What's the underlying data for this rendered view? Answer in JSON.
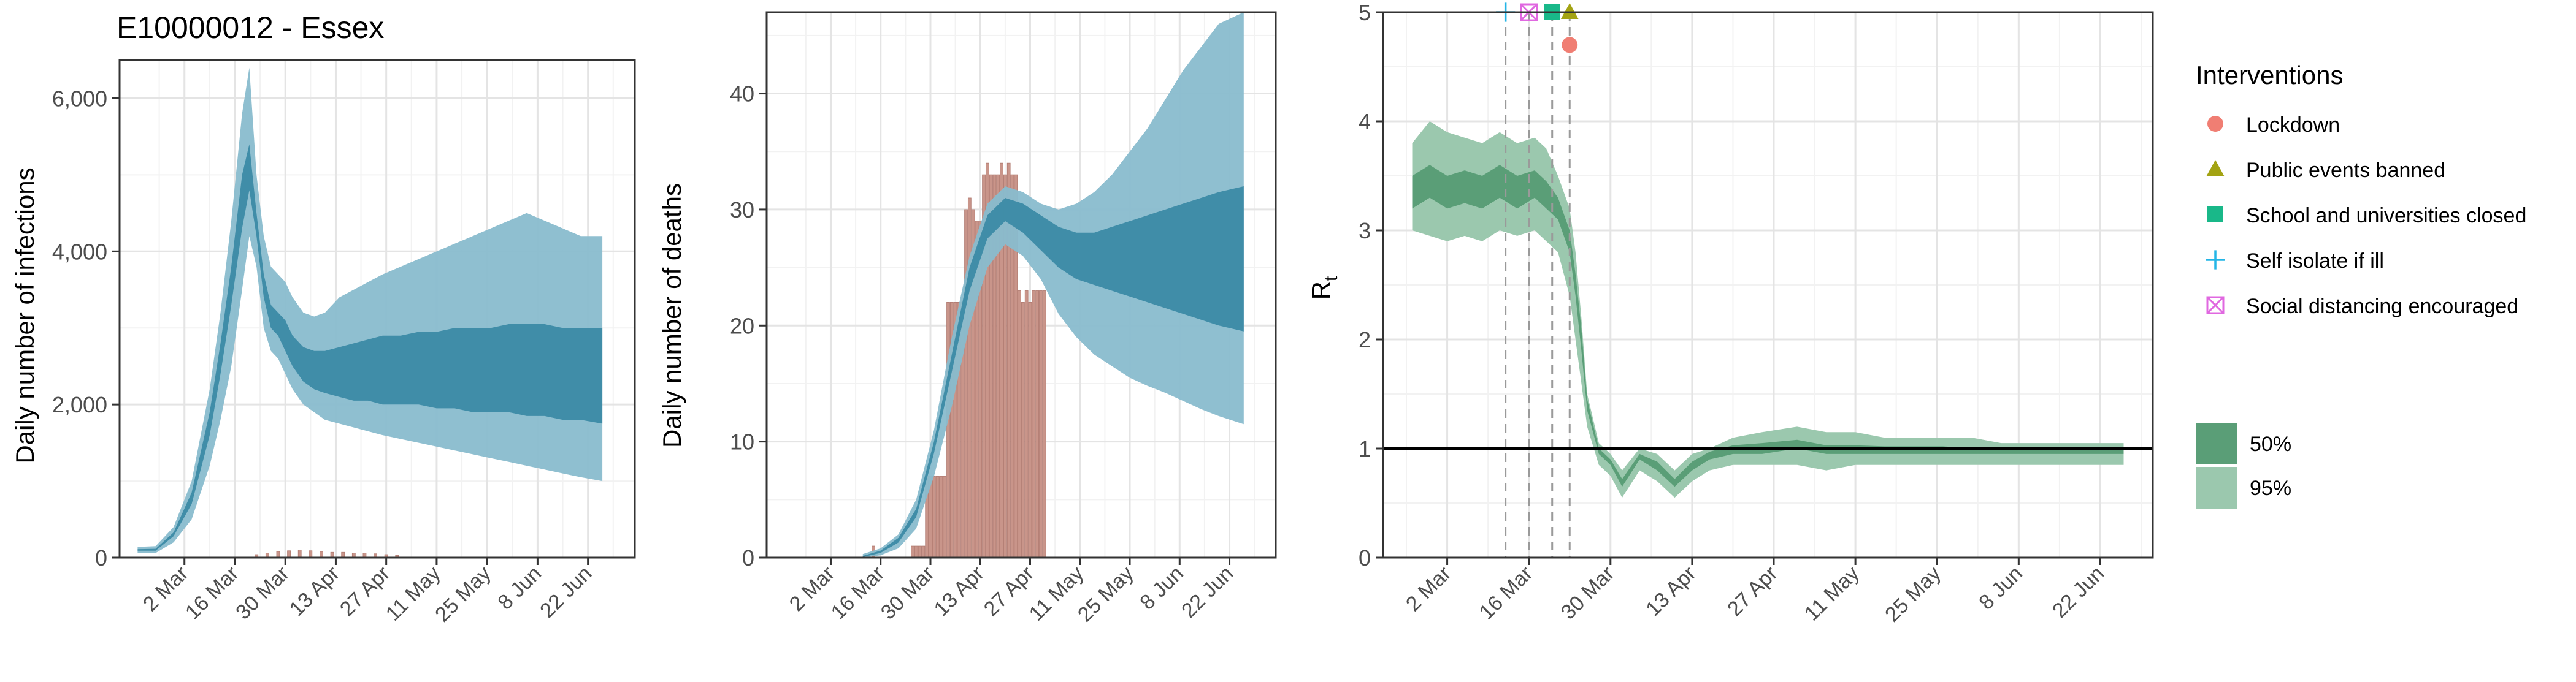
{
  "title": "E10000012 - Essex",
  "colors": {
    "infection_95": "#89bccd",
    "infection_50": "#3c8aa5",
    "death_bar": "#c9958a",
    "rt_95": "#9bc8ae",
    "rt_50": "#5a9e77",
    "lockdown": "#f07e73",
    "public_events_banned": "#a3a313",
    "school_closed": "#19b889",
    "self_isolate": "#24b5e6",
    "social_distancing": "#e068e0"
  },
  "chart_data": [
    {
      "type": "area",
      "ylabel": "Daily number of infections",
      "x_ticks": [
        "2 Mar",
        "16 Mar",
        "30 Mar",
        "13 Apr",
        "27 Apr",
        "11 May",
        "25 May",
        "8 Jun",
        "22 Jun"
      ],
      "y_ticks": [
        "0",
        "2,000",
        "4,000",
        "6,000"
      ],
      "ylim": [
        0,
        6500
      ],
      "xlim": [
        "2020-02-13",
        "2020-07-05"
      ],
      "grid": true,
      "x": [
        "2020-02-18",
        "2020-02-23",
        "2020-02-28",
        "2020-03-04",
        "2020-03-09",
        "2020-03-12",
        "2020-03-15",
        "2020-03-18",
        "2020-03-20",
        "2020-03-22",
        "2020-03-24",
        "2020-03-26",
        "2020-03-28",
        "2020-03-30",
        "2020-04-01",
        "2020-04-04",
        "2020-04-07",
        "2020-04-10",
        "2020-04-14",
        "2020-04-18",
        "2020-04-22",
        "2020-04-26",
        "2020-05-01",
        "2020-05-06",
        "2020-05-11",
        "2020-05-16",
        "2020-05-21",
        "2020-05-26",
        "2020-05-31",
        "2020-06-05",
        "2020-06-10",
        "2020-06-15",
        "2020-06-20",
        "2020-06-26"
      ],
      "series": [
        {
          "interval": "95%",
          "lower": [
            60,
            60,
            200,
            500,
            1200,
            1800,
            2500,
            3500,
            4200,
            3800,
            3000,
            2700,
            2600,
            2400,
            2200,
            2000,
            1900,
            1800,
            1750,
            1700,
            1650,
            1600,
            1550,
            1500,
            1450,
            1400,
            1350,
            1300,
            1250,
            1200,
            1150,
            1100,
            1050,
            1000
          ],
          "upper": [
            140,
            150,
            400,
            1000,
            2200,
            3200,
            4400,
            5800,
            6400,
            5000,
            4200,
            3800,
            3700,
            3600,
            3400,
            3200,
            3150,
            3200,
            3400,
            3500,
            3600,
            3700,
            3800,
            3900,
            4000,
            4100,
            4200,
            4300,
            4400,
            4500,
            4400,
            4300,
            4200,
            4200
          ]
        },
        {
          "interval": "50%",
          "lower": [
            90,
            90,
            280,
            700,
            1600,
            2400,
            3300,
            4300,
            4800,
            4200,
            3400,
            3000,
            2900,
            2700,
            2500,
            2300,
            2200,
            2150,
            2100,
            2050,
            2050,
            2000,
            2000,
            2000,
            1950,
            1950,
            1900,
            1900,
            1900,
            1850,
            1850,
            1800,
            1800,
            1750
          ],
          "upper": [
            110,
            115,
            330,
            850,
            1900,
            2800,
            3800,
            5000,
            5400,
            4500,
            3700,
            3300,
            3200,
            3100,
            2900,
            2750,
            2700,
            2700,
            2750,
            2800,
            2850,
            2900,
            2900,
            2950,
            2950,
            3000,
            3000,
            3000,
            3050,
            3050,
            3050,
            3000,
            3000,
            3000
          ]
        }
      ],
      "bars": {
        "x": [
          "2020-03-22",
          "2020-03-25",
          "2020-03-28",
          "2020-03-31",
          "2020-04-03",
          "2020-04-06",
          "2020-04-09",
          "2020-04-12",
          "2020-04-15",
          "2020-04-18",
          "2020-04-21",
          "2020-04-24",
          "2020-04-27",
          "2020-04-30"
        ],
        "values": [
          40,
          60,
          80,
          90,
          100,
          90,
          80,
          70,
          70,
          60,
          60,
          50,
          40,
          30
        ]
      }
    },
    {
      "type": "area",
      "ylabel": "Daily number of deaths",
      "x_ticks": [
        "2 Mar",
        "16 Mar",
        "30 Mar",
        "13 Apr",
        "27 Apr",
        "11 May",
        "25 May",
        "8 Jun",
        "22 Jun"
      ],
      "y_ticks": [
        "0",
        "10",
        "20",
        "30",
        "40"
      ],
      "ylim": [
        0,
        47
      ],
      "xlim": [
        "2020-02-13",
        "2020-07-05"
      ],
      "grid": true,
      "x": [
        "2020-03-11",
        "2020-03-16",
        "2020-03-21",
        "2020-03-26",
        "2020-03-31",
        "2020-04-05",
        "2020-04-10",
        "2020-04-15",
        "2020-04-20",
        "2020-04-25",
        "2020-04-30",
        "2020-05-05",
        "2020-05-10",
        "2020-05-15",
        "2020-05-20",
        "2020-05-25",
        "2020-05-30",
        "2020-06-04",
        "2020-06-09",
        "2020-06-14",
        "2020-06-19",
        "2020-06-26"
      ],
      "series": [
        {
          "interval": "95%",
          "lower": [
            0,
            0.2,
            0.8,
            2.5,
            7,
            13,
            20,
            25,
            27,
            26,
            24,
            21,
            19,
            17.5,
            16.5,
            15.5,
            14.8,
            14.2,
            13.5,
            12.8,
            12.2,
            11.5
          ],
          "upper": [
            0.3,
            0.8,
            2,
            5,
            11,
            19,
            26,
            30.5,
            32,
            31.5,
            30.5,
            30,
            30.5,
            31.5,
            33,
            35,
            37,
            39.5,
            42,
            44,
            46,
            47
          ]
        },
        {
          "interval": "50%",
          "lower": [
            0.05,
            0.4,
            1.3,
            3.5,
            9,
            16,
            23,
            27.5,
            29,
            28,
            26.5,
            25,
            24,
            23.5,
            23,
            22.5,
            22,
            21.5,
            21,
            20.5,
            20,
            19.5
          ],
          "upper": [
            0.15,
            0.6,
            1.7,
            4.2,
            10,
            17.5,
            25,
            29.5,
            31,
            30.5,
            29.5,
            28.5,
            28,
            28,
            28.5,
            29,
            29.5,
            30,
            30.5,
            31,
            31.5,
            32
          ]
        }
      ],
      "bars": {
        "x": [
          "2020-03-14",
          "2020-03-25",
          "2020-03-26",
          "2020-03-27",
          "2020-03-28",
          "2020-03-29",
          "2020-03-30",
          "2020-03-31",
          "2020-04-01",
          "2020-04-02",
          "2020-04-03",
          "2020-04-04",
          "2020-04-05",
          "2020-04-06",
          "2020-04-07",
          "2020-04-08",
          "2020-04-09",
          "2020-04-10",
          "2020-04-11",
          "2020-04-12",
          "2020-04-13",
          "2020-04-14",
          "2020-04-15",
          "2020-04-16",
          "2020-04-17",
          "2020-04-18",
          "2020-04-19",
          "2020-04-20",
          "2020-04-21",
          "2020-04-22",
          "2020-04-23",
          "2020-04-24",
          "2020-04-25",
          "2020-04-26",
          "2020-04-27",
          "2020-04-28",
          "2020-04-29",
          "2020-04-30",
          "2020-05-01"
        ],
        "values": [
          1,
          1,
          1,
          1,
          1,
          7,
          7,
          7,
          7,
          7,
          7,
          22,
          22,
          22,
          22,
          22,
          30,
          31,
          30,
          29,
          29,
          33,
          34,
          33,
          33,
          33,
          34,
          33,
          34,
          33,
          33,
          23,
          22,
          23,
          22,
          23,
          23,
          23,
          23
        ]
      }
    },
    {
      "type": "area",
      "ylabel": "R",
      "ylabel_subscript": "t",
      "x_ticks": [
        "2 Mar",
        "16 Mar",
        "30 Mar",
        "13 Apr",
        "27 Apr",
        "11 May",
        "25 May",
        "8 Jun",
        "22 Jun"
      ],
      "y_ticks": [
        "0",
        "1",
        "2",
        "3",
        "4",
        "5"
      ],
      "ylim": [
        0,
        5
      ],
      "xlim": [
        "2020-02-20",
        "2020-07-01"
      ],
      "grid": true,
      "reference_line": 1,
      "x": [
        "2020-02-25",
        "2020-02-28",
        "2020-03-02",
        "2020-03-05",
        "2020-03-08",
        "2020-03-11",
        "2020-03-14",
        "2020-03-17",
        "2020-03-19",
        "2020-03-21",
        "2020-03-23",
        "2020-03-24",
        "2020-03-25",
        "2020-03-26",
        "2020-03-28",
        "2020-03-30",
        "2020-04-01",
        "2020-04-04",
        "2020-04-07",
        "2020-04-10",
        "2020-04-13",
        "2020-04-16",
        "2020-04-20",
        "2020-04-25",
        "2020-05-01",
        "2020-05-06",
        "2020-05-11",
        "2020-05-16",
        "2020-05-21",
        "2020-05-26",
        "2020-05-31",
        "2020-06-05",
        "2020-06-10",
        "2020-06-15",
        "2020-06-20",
        "2020-06-26"
      ],
      "series": [
        {
          "interval": "95%",
          "lower": [
            3.0,
            2.95,
            2.9,
            2.95,
            2.9,
            3.0,
            2.95,
            3.0,
            2.9,
            2.8,
            2.4,
            2.0,
            1.6,
            1.2,
            0.85,
            0.75,
            0.55,
            0.8,
            0.7,
            0.55,
            0.7,
            0.8,
            0.85,
            0.85,
            0.85,
            0.8,
            0.85,
            0.85,
            0.85,
            0.85,
            0.85,
            0.85,
            0.85,
            0.85,
            0.85,
            0.85
          ],
          "upper": [
            3.8,
            4.0,
            3.9,
            3.85,
            3.8,
            3.9,
            3.8,
            3.85,
            3.75,
            3.5,
            3.2,
            2.8,
            2.2,
            1.5,
            1.05,
            0.95,
            0.8,
            1.0,
            0.95,
            0.8,
            0.95,
            1.0,
            1.1,
            1.15,
            1.2,
            1.15,
            1.15,
            1.1,
            1.1,
            1.1,
            1.1,
            1.05,
            1.05,
            1.05,
            1.05,
            1.05
          ]
        },
        {
          "interval": "50%",
          "lower": [
            3.2,
            3.3,
            3.2,
            3.25,
            3.2,
            3.3,
            3.2,
            3.3,
            3.2,
            3.1,
            2.8,
            2.4,
            1.9,
            1.35,
            0.95,
            0.85,
            0.65,
            0.9,
            0.8,
            0.65,
            0.8,
            0.9,
            0.95,
            0.95,
            1.0,
            0.95,
            0.95,
            0.95,
            0.95,
            0.95,
            0.95,
            0.95,
            0.95,
            0.95,
            0.95,
            0.95
          ],
          "upper": [
            3.5,
            3.6,
            3.5,
            3.55,
            3.5,
            3.6,
            3.5,
            3.55,
            3.45,
            3.3,
            3.0,
            2.6,
            2.1,
            1.45,
            1.0,
            0.9,
            0.72,
            0.95,
            0.88,
            0.72,
            0.88,
            0.97,
            1.03,
            1.05,
            1.08,
            1.03,
            1.03,
            1.02,
            1.02,
            1.02,
            1.0,
            1.0,
            1.0,
            1.0,
            1.0,
            1.0
          ]
        }
      ],
      "interventions": [
        {
          "label": "Lockdown",
          "date": "2020-03-23",
          "marker": "circle",
          "y": 4.7
        },
        {
          "label": "Public events banned",
          "date": "2020-03-23",
          "marker": "triangle",
          "y": 5.0
        },
        {
          "label": "School and universities closed",
          "date": "2020-03-20",
          "marker": "square",
          "y": 5.0
        },
        {
          "label": "Self isolate if ill",
          "date": "2020-03-12",
          "marker": "plus",
          "y": 5.0
        },
        {
          "label": "Social distancing encouraged",
          "date": "2020-03-16",
          "marker": "boxcross",
          "y": 5.0
        }
      ],
      "legend": {
        "title": "Interventions",
        "placement": "right",
        "intervals": [
          "50%",
          "95%"
        ]
      }
    }
  ]
}
